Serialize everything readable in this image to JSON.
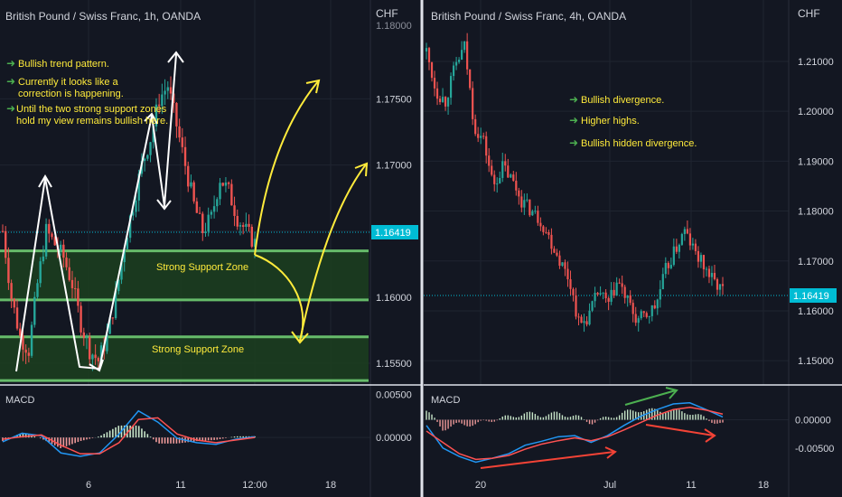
{
  "theme": {
    "bg": "#131722",
    "divider": "#e0e3eb",
    "grid": "#1f2430",
    "text": "#d1d4dc",
    "bull": "#26a69a",
    "bear": "#ef5350",
    "price_tag": "#00bcd4",
    "annotation": "#ffeb3b",
    "support_fill": "#1c3d1f",
    "support_line": "#66bb6a",
    "macd_line": "#2196f3",
    "signal_line": "#ff5252",
    "arrow_white": "#ffffff",
    "arrow_green": "#4caf50",
    "arrow_red": "#f44336"
  },
  "chart_data": [
    {
      "type": "candlestick",
      "title": "British Pound / Swiss Franc, 1h, OANDA",
      "currency": "CHF",
      "y_ticks": [
        1.155,
        1.16,
        1.165,
        1.17,
        1.175
      ],
      "y_tick_labels": [
        "1.15500",
        "1.16000",
        "1.16500",
        "1.17000",
        "1.17500"
      ],
      "y_top_partial_label": "1.18000",
      "ylim": [
        1.1535,
        1.1807
      ],
      "x_ticks": [
        "6",
        "11",
        "12:00",
        "18"
      ],
      "last_price": "1.16419",
      "support_zones": [
        {
          "label": "Strong Support Zone",
          "top": 1.1635,
          "bottom": 1.1598
        },
        {
          "label": "Strong Support Zone",
          "top": 1.157,
          "bottom": 1.1537
        }
      ],
      "notes": [
        "Bullish trend pattern.",
        "Currently it looks like a correction is happening.",
        "Until the two strong support zones hold my view remains bullish here."
      ],
      "path_low": [
        1.1545,
        1.1652,
        1.1631,
        1.1623,
        1.1606,
        1.1548,
        1.1567,
        1.1644,
        1.17,
        1.175,
        1.171,
        1.168,
        1.166,
        1.165,
        1.1645,
        1.1631
      ],
      "path_high": [
        1.1636,
        1.1654,
        1.164,
        1.158,
        1.1565,
        1.1595,
        1.167,
        1.176,
        1.1775,
        1.1741,
        1.1694,
        1.1672,
        1.1695,
        1.1705,
        1.166,
        1.1666
      ],
      "macd": {
        "label": "MACD",
        "y_tick_labels": [
          "0.00500",
          "0.00000"
        ],
        "ylim": [
          -0.0042,
          0.0055
        ],
        "macd": [
          -0.0005,
          0.0005,
          0.0002,
          -0.0018,
          -0.0022,
          -0.0018,
          0.0004,
          0.0031,
          0.0018,
          -0.0001,
          -0.0006,
          -0.0008,
          -0.0002,
          0.0001
        ],
        "signal": [
          -0.0002,
          0.0001,
          0.0003,
          -0.0009,
          -0.0019,
          -0.0019,
          -0.0006,
          0.0021,
          0.0023,
          0.0004,
          -0.0003,
          -0.0006,
          -0.0003,
          0.0
        ]
      }
    },
    {
      "type": "candlestick",
      "title": "British Pound / Swiss Franc, 4h, OANDA",
      "currency": "CHF",
      "y_ticks": [
        1.15,
        1.16,
        1.17,
        1.18,
        1.19,
        1.2,
        1.21
      ],
      "y_tick_labels": [
        "1.15000",
        "1.16000",
        "1.17000",
        "1.18000",
        "1.19000",
        "1.20000",
        "1.21000"
      ],
      "ylim": [
        1.1455,
        1.2176
      ],
      "x_ticks": [
        "20",
        "Jul",
        "11",
        "18"
      ],
      "last_price": "1.16419",
      "notes": [
        "Bullish divergence.",
        "Higher highs.",
        "Bullish hidden divergence."
      ],
      "path": [
        1.212,
        1.204,
        1.202,
        1.209,
        1.213,
        1.197,
        1.194,
        1.185,
        1.189,
        1.186,
        1.182,
        1.18,
        1.178,
        1.174,
        1.17,
        1.166,
        1.157,
        1.159,
        1.164,
        1.161,
        1.166,
        1.162,
        1.158,
        1.159,
        1.161,
        1.168,
        1.172,
        1.176,
        1.172,
        1.169,
        1.166,
        1.1641
      ],
      "macd": {
        "label": "MACD",
        "y_tick_labels": [
          "0.00000",
          "-0.00500"
        ],
        "ylim": [
          -0.0095,
          0.0052
        ],
        "macd": [
          -0.001,
          -0.005,
          -0.0065,
          -0.0075,
          -0.0068,
          -0.006,
          -0.0045,
          -0.0038,
          -0.003,
          -0.0028,
          -0.004,
          -0.0028,
          -0.001,
          0.0006,
          0.0018,
          0.0028,
          0.003,
          0.0018,
          0.0005
        ],
        "signal": [
          -0.002,
          -0.004,
          -0.006,
          -0.007,
          -0.0068,
          -0.0063,
          -0.0052,
          -0.0043,
          -0.0037,
          -0.0032,
          -0.0037,
          -0.003,
          -0.0018,
          -0.0005,
          0.0008,
          0.0018,
          0.0022,
          0.0017,
          0.001
        ]
      }
    }
  ]
}
